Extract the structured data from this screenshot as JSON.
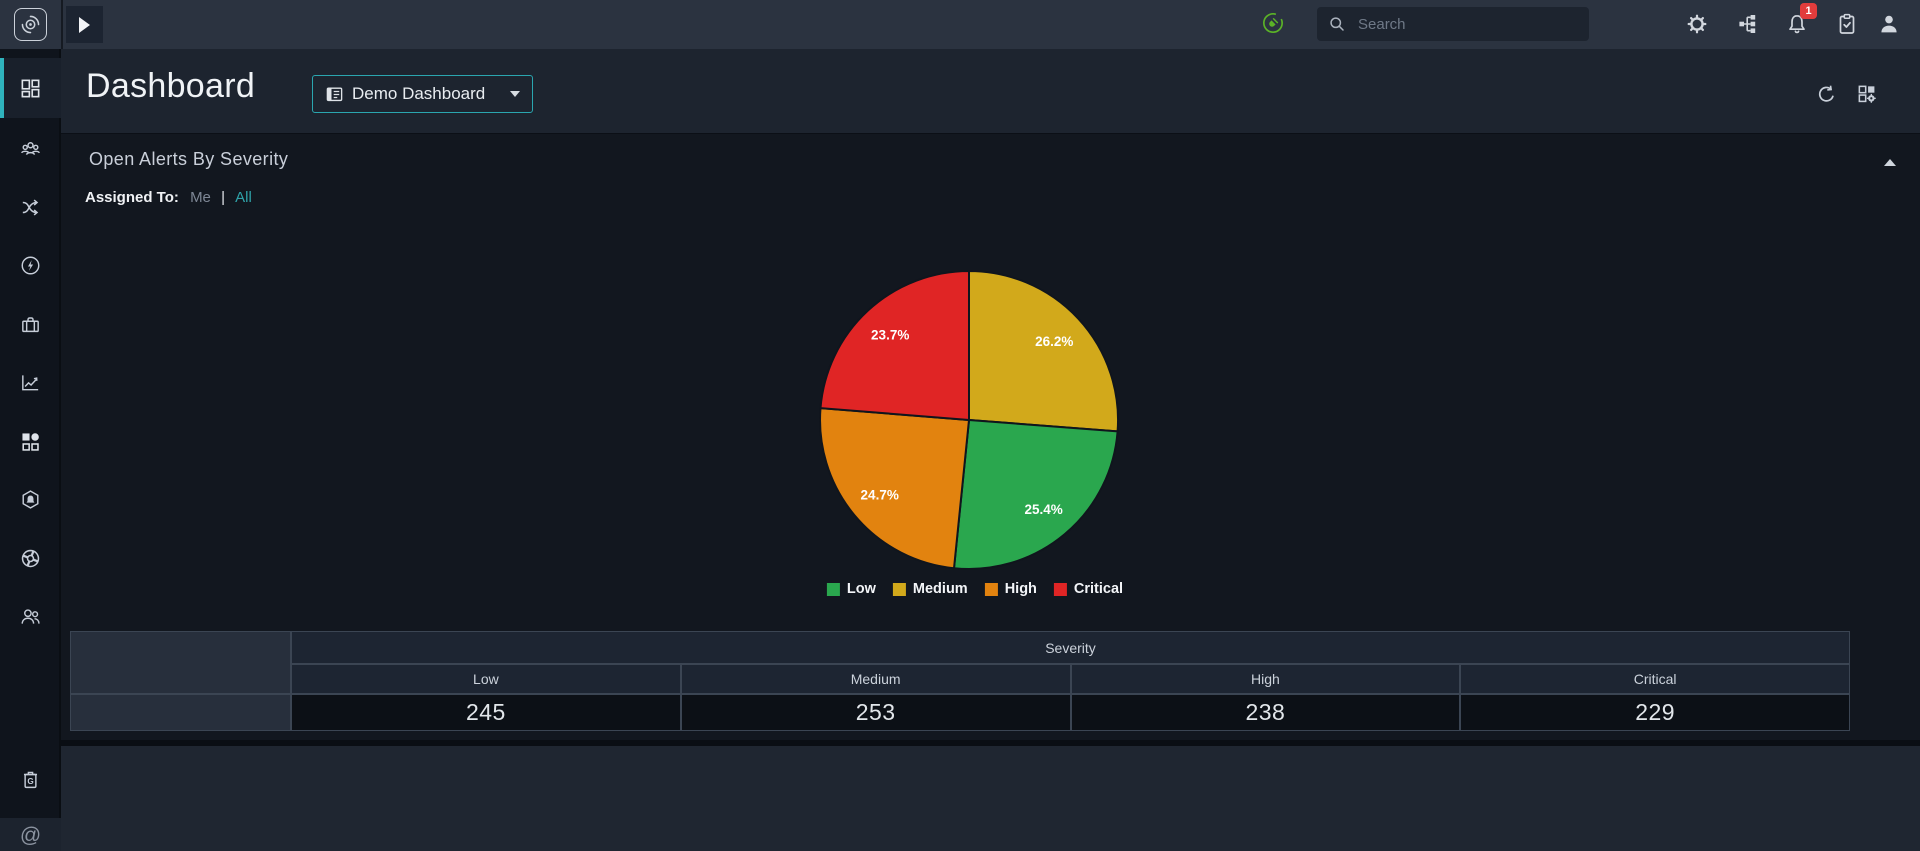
{
  "topbar": {
    "search_placeholder": "Search",
    "notification_count": "1",
    "icons": [
      "target-logo-icon",
      "collapse-panel-icon",
      "connection-status-plug-icon",
      "search-icon",
      "settings-gear-icon",
      "workflow-tree-icon",
      "notifications-bell-icon",
      "tasks-clipboard-icon",
      "user-profile-icon"
    ]
  },
  "sidebar": {
    "active_item": "dashboards",
    "accent_teal": "#2fb3bd",
    "icons": [
      "dashboards-grid-icon",
      "user-group-icon",
      "shuffle-icon",
      "lightning-circle-icon",
      "briefcase-icon",
      "line-chart-icon",
      "widgets-icon",
      "hexagon-alert-icon",
      "wheel-icon",
      "two-users-icon",
      "archive-g-icon",
      "at-sign-icon"
    ]
  },
  "header": {
    "title": "Dashboard",
    "selector_label": "Demo Dashboard",
    "action_icons": [
      "refresh-icon",
      "manage-dashboards-icon"
    ]
  },
  "widget": {
    "title": "Open Alerts By Severity",
    "assigned_to_label": "Assigned To:",
    "assigned_me": "Me",
    "separator": "|",
    "assigned_all": "All"
  },
  "chart_data": {
    "type": "pie",
    "title": "Open Alerts By Severity",
    "categories": [
      "Low",
      "Medium",
      "High",
      "Critical"
    ],
    "values": [
      245,
      253,
      238,
      229
    ],
    "colors": {
      "Low": "#2aa74e",
      "Medium": "#d2a91b",
      "High": "#e2830f",
      "Critical": "#e02525"
    },
    "slices": [
      {
        "label": "Medium",
        "value": 253,
        "pct": "26.2%",
        "color": "#d2a91b"
      },
      {
        "label": "Low",
        "value": 245,
        "pct": "25.4%",
        "color": "#2aa74e"
      },
      {
        "label": "High",
        "value": 238,
        "pct": "24.7%",
        "color": "#e2830f"
      },
      {
        "label": "Critical",
        "value": 229,
        "pct": "23.7%",
        "color": "#e02525"
      }
    ],
    "legend": [
      {
        "label": "Low",
        "color": "#2aa74e"
      },
      {
        "label": "Medium",
        "color": "#d2a91b"
      },
      {
        "label": "High",
        "color": "#e2830f"
      },
      {
        "label": "Critical",
        "color": "#e02525"
      }
    ],
    "start_angle_deg": 0,
    "direction": "clockwise",
    "divider_color": "#10151d",
    "label_color": "#ffffff",
    "label_radius_fraction": 0.78,
    "legend_position": "bottom"
  },
  "severity_table": {
    "group_header": "Severity",
    "columns": [
      "Low",
      "Medium",
      "High",
      "Critical"
    ],
    "values": [
      "245",
      "253",
      "238",
      "229"
    ]
  }
}
